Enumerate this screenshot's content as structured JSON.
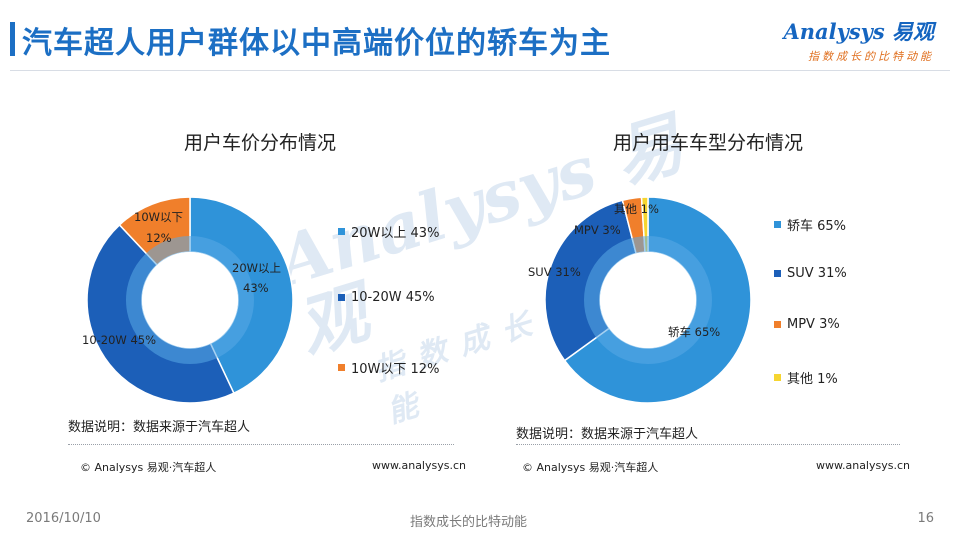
{
  "header": {
    "title": "汽车超人用户群体以中高端价位的轿车为主",
    "logo_text": "nalysys 易观",
    "logo_initial": "A",
    "logo_slogan": "指数成长的比特动能"
  },
  "watermark": {
    "main": "Analysys 易观",
    "sub": "指数成长的比特动能"
  },
  "colors": {
    "accent": "#1c6fc4",
    "light_blue": "#2f93d9",
    "dark_blue": "#1c5fb8",
    "orange": "#f07f2b",
    "yellow": "#f6d530",
    "inner_ring": "#5aa9e6"
  },
  "chart_data": [
    {
      "type": "pie",
      "donut": true,
      "title": "用户车价分布情况",
      "slices": [
        {
          "name": "20W以上",
          "value": 43,
          "label": "20W以上",
          "pct_label": "43%",
          "color": "#2f93d9"
        },
        {
          "name": "10-20W",
          "value": 45,
          "label": "10-20W",
          "pct_label": "45%",
          "color": "#1c5fb8"
        },
        {
          "name": "10W以下",
          "value": 12,
          "label": "10W以下",
          "pct_label": "12%",
          "color": "#f07f2b"
        }
      ],
      "legend": [
        {
          "text": "20W以上  43%",
          "color": "#2f93d9"
        },
        {
          "text": "10-20W  45%",
          "color": "#1c5fb8"
        },
        {
          "text": "10W以下  12%",
          "color": "#f07f2b"
        }
      ],
      "legend_position": "right",
      "note": "数据说明：数据来源于汽车超人",
      "copyright": "© Analysys 易观·汽车超人",
      "site": "www.analysys.cn"
    },
    {
      "type": "pie",
      "donut": true,
      "title": "用户用车车型分布情况",
      "slices": [
        {
          "name": "轿车",
          "value": 65,
          "label": "轿车",
          "pct_label": "65%",
          "color": "#2f93d9"
        },
        {
          "name": "SUV",
          "value": 31,
          "label": "SUV",
          "pct_label": "31%",
          "color": "#1c5fb8"
        },
        {
          "name": "MPV",
          "value": 3,
          "label": "MPV",
          "pct_label": "3%",
          "color": "#f07f2b"
        },
        {
          "name": "其他",
          "value": 1,
          "label": "其他",
          "pct_label": "1%",
          "color": "#f6d530"
        }
      ],
      "legend": [
        {
          "text": "轿车  65%",
          "color": "#2f93d9"
        },
        {
          "text": "SUV  31%",
          "color": "#1c5fb8"
        },
        {
          "text": "MPV  3%",
          "color": "#f07f2b"
        },
        {
          "text": "其他    1%",
          "color": "#f6d530"
        }
      ],
      "legend_position": "right",
      "note": "数据说明：数据来源于汽车超人",
      "copyright": "© Analysys 易观·汽车超人",
      "site": "www.analysys.cn"
    }
  ],
  "footer": {
    "date": "2016/10/10",
    "slogan": "指数成长的比特动能",
    "page": "16"
  }
}
